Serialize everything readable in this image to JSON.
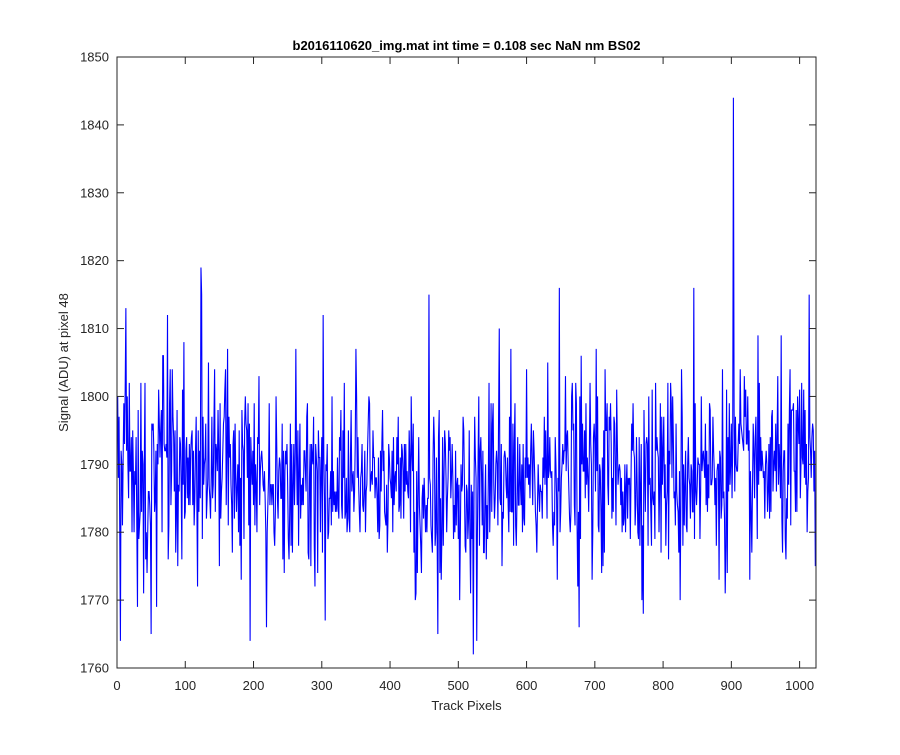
{
  "chart_data": {
    "type": "line",
    "title": "b2016110620_img.mat int time = 0.108 sec  NaN nm BS02",
    "xlabel": "Track Pixels",
    "ylabel": "Signal (ADU) at pixel 48",
    "xlim": [
      0,
      1024
    ],
    "ylim": [
      1760,
      1850
    ],
    "xticks": [
      0,
      100,
      200,
      300,
      400,
      500,
      600,
      700,
      800,
      900,
      1000
    ],
    "yticks": [
      1760,
      1770,
      1780,
      1790,
      1800,
      1810,
      1820,
      1830,
      1840,
      1850
    ],
    "grid": false,
    "line_color": "#0000ff",
    "series": [
      {
        "name": "",
        "n_points": 1024,
        "x_start": 1,
        "x_step": 1,
        "mean": 1789,
        "noise_sd": 7,
        "low_mean_segments": [
          [
            420,
            620,
            1786
          ]
        ],
        "peaks": [
          [
            903,
            1844
          ],
          [
            123,
            1819
          ],
          [
            124,
            1815
          ],
          [
            457,
            1815
          ],
          [
            648,
            1816
          ],
          [
            845,
            1816
          ],
          [
            1014,
            1815
          ],
          [
            302,
            1812
          ],
          [
            74,
            1812
          ],
          [
            13,
            1813
          ],
          [
            560,
            1810
          ]
        ],
        "troughs": [
          [
            522,
            1762
          ],
          [
            5,
            1764
          ],
          [
            195,
            1764
          ],
          [
            527,
            1764
          ],
          [
            470,
            1765
          ],
          [
            50,
            1765
          ],
          [
            219,
            1766
          ],
          [
            677,
            1766
          ],
          [
            30,
            1769
          ],
          [
            58,
            1769
          ],
          [
            305,
            1767
          ],
          [
            825,
            1770
          ]
        ]
      }
    ]
  }
}
